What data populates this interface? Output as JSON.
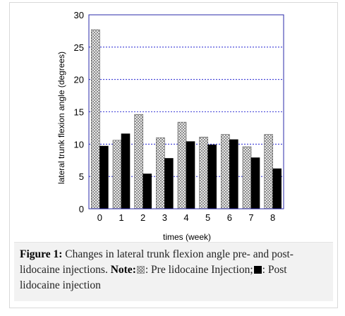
{
  "chart_data": {
    "type": "bar",
    "categories": [
      "0",
      "1",
      "2",
      "3",
      "4",
      "5",
      "6",
      "7",
      "8"
    ],
    "series": [
      {
        "name": "Pre lidocaine Injection",
        "values": [
          27.7,
          10.6,
          14.6,
          11.0,
          13.4,
          11.1,
          11.5,
          9.6,
          11.5
        ]
      },
      {
        "name": "Post lidocaine injection",
        "values": [
          9.7,
          11.6,
          5.4,
          7.8,
          10.4,
          9.9,
          10.7,
          7.9,
          6.2
        ]
      }
    ],
    "xlabel": "times (week)",
    "ylabel": "lateral trunk flexion angle (degrees)",
    "ylim": [
      0,
      30
    ],
    "yticks": [
      0,
      5,
      10,
      15,
      20,
      25,
      30
    ],
    "grid": true,
    "colors": {
      "pre_pattern": "#777777",
      "post": "#000000",
      "grid": "#0000cc",
      "frame": "#2a2aa8"
    }
  },
  "caption": {
    "label": "Figure 1:",
    "text": " Changes in lateral trunk flexion angle pre- and post-lidocaine injections. ",
    "note_label": "Note:",
    "pre_text": ": Pre lidocaine Injection;",
    "post_text": ": Post lidocaine injection"
  }
}
